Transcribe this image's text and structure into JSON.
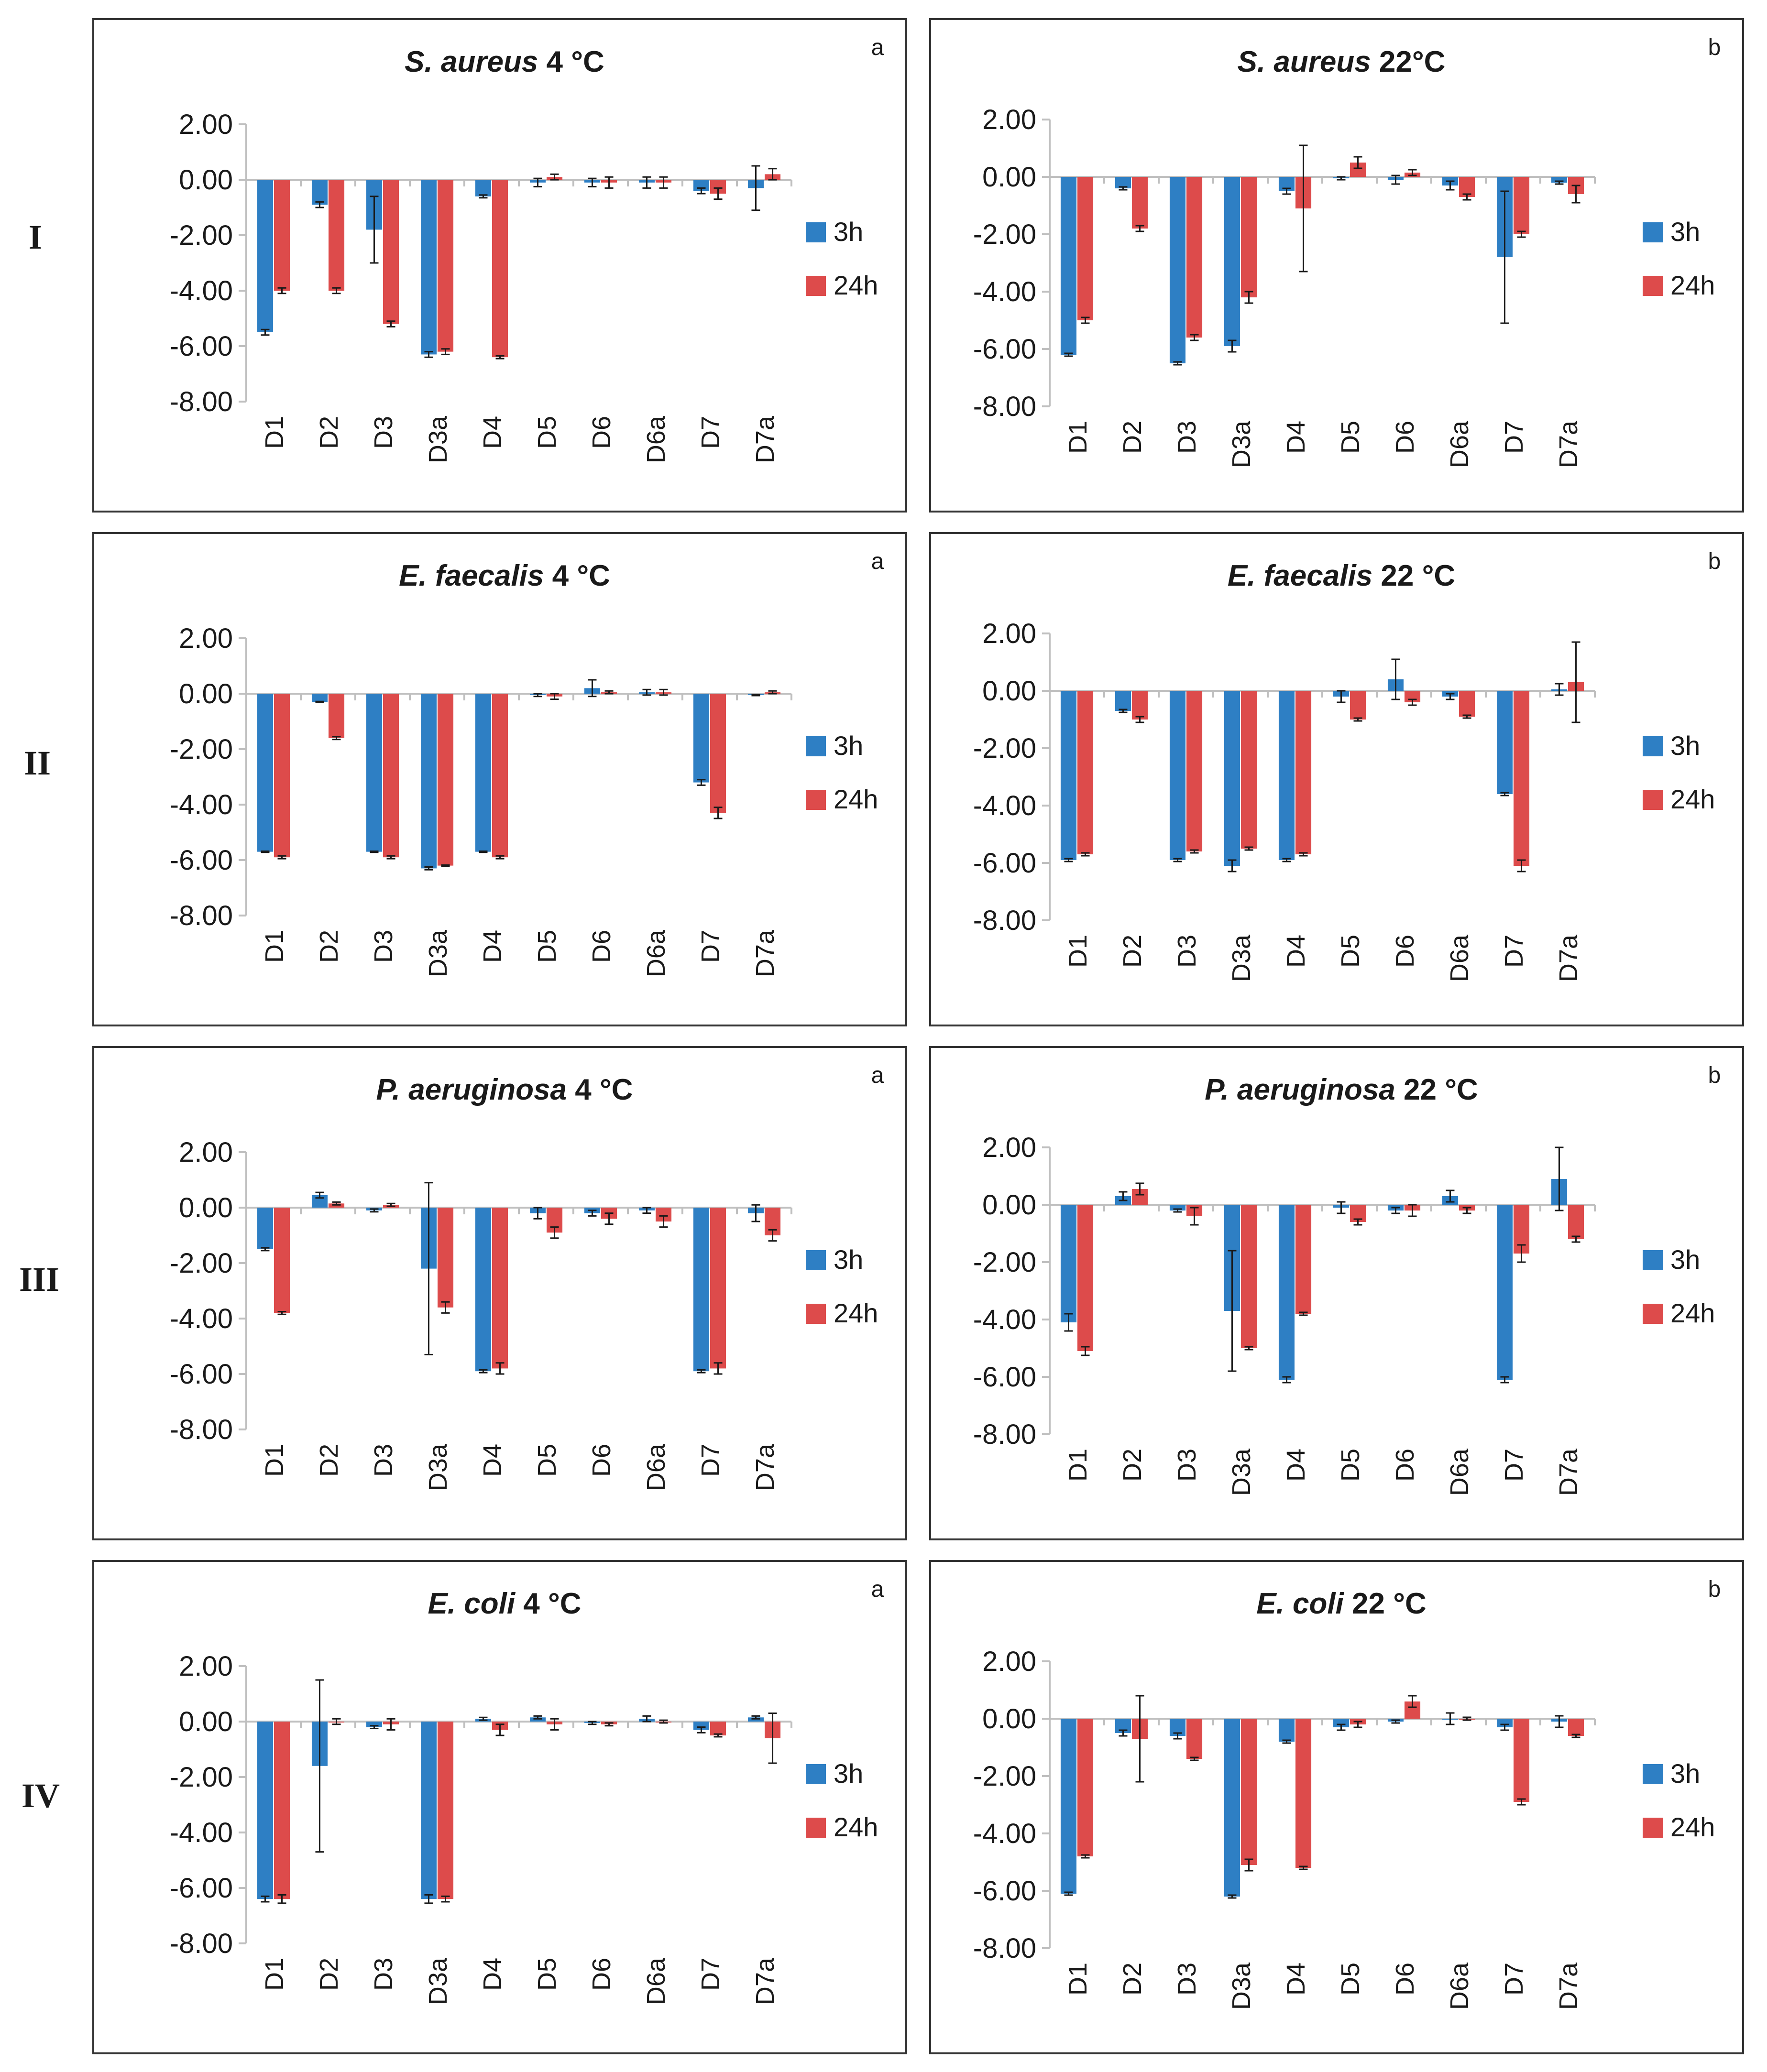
{
  "figure": {
    "row_labels": [
      "I",
      "II",
      "III",
      "IV"
    ],
    "panel_letters": [
      "a",
      "b"
    ],
    "legend": [
      {
        "label": "3h",
        "color": "#2e7fc4"
      },
      {
        "label": "24h",
        "color": "#dd4b4b"
      }
    ],
    "colors": {
      "bar_3h": "#2e7fc4",
      "bar_24h": "#dd4b4b",
      "axis": "#bfbfbf",
      "frame": "#333333",
      "text": "#1a1a1a"
    }
  },
  "chart_data": [
    {
      "type": "bar",
      "row": "I",
      "panel": "a",
      "title_species": "S. aureus",
      "title_temp": "4 °C",
      "categories": [
        "D1",
        "D2",
        "D3",
        "D3a",
        "D4",
        "D5",
        "D6",
        "D6a",
        "D7",
        "D7a"
      ],
      "ylim": [
        -8,
        2
      ],
      "yticks": [
        "2.00",
        "0.00",
        "-2.00",
        "-4.00",
        "-6.00",
        "-8.00"
      ],
      "series": [
        {
          "name": "3h",
          "values": [
            -5.5,
            -0.9,
            -1.8,
            -6.3,
            -0.6,
            -0.1,
            -0.1,
            -0.1,
            -0.4,
            -0.3
          ],
          "errors": [
            0.1,
            0.1,
            1.2,
            0.1,
            0.05,
            0.15,
            0.15,
            0.2,
            0.1,
            0.8
          ]
        },
        {
          "name": "24h",
          "values": [
            -4.0,
            -4.0,
            -5.2,
            -6.2,
            -6.4,
            0.1,
            -0.1,
            -0.1,
            -0.5,
            0.2
          ],
          "errors": [
            0.1,
            0.1,
            0.1,
            0.1,
            0.05,
            0.1,
            0.2,
            0.2,
            0.2,
            0.2
          ]
        }
      ]
    },
    {
      "type": "bar",
      "row": "I",
      "panel": "b",
      "title_species": "S. aureus",
      "title_temp": "22°C",
      "categories": [
        "D1",
        "D2",
        "D3",
        "D3a",
        "D4",
        "D5",
        "D6",
        "D6a",
        "D7",
        "D7a"
      ],
      "ylim": [
        -8,
        2
      ],
      "yticks": [
        "2.00",
        "0.00",
        "-2.00",
        "-4.00",
        "-6.00",
        "-8.00"
      ],
      "series": [
        {
          "name": "3h",
          "values": [
            -6.2,
            -0.4,
            -6.5,
            -5.9,
            -0.5,
            -0.05,
            -0.1,
            -0.3,
            -2.8,
            -0.2
          ],
          "errors": [
            0.05,
            0.05,
            0.05,
            0.2,
            0.1,
            0.05,
            0.15,
            0.15,
            2.3,
            0.05
          ]
        },
        {
          "name": "24h",
          "values": [
            -5.0,
            -1.8,
            -5.6,
            -4.2,
            -1.1,
            0.5,
            0.15,
            -0.7,
            -2.0,
            -0.6
          ],
          "errors": [
            0.1,
            0.1,
            0.1,
            0.2,
            2.2,
            0.2,
            0.1,
            0.1,
            0.1,
            0.3
          ]
        }
      ]
    },
    {
      "type": "bar",
      "row": "II",
      "panel": "a",
      "title_species": "E. faecalis",
      "title_temp": "4 °C",
      "categories": [
        "D1",
        "D2",
        "D3",
        "D3a",
        "D4",
        "D5",
        "D6",
        "D6a",
        "D7",
        "D7a"
      ],
      "ylim": [
        -8,
        2
      ],
      "yticks": [
        "2.00",
        "0.00",
        "-2.00",
        "-4.00",
        "-6.00",
        "-8.00"
      ],
      "series": [
        {
          "name": "3h",
          "values": [
            -5.7,
            -0.3,
            -5.7,
            -6.3,
            -5.7,
            -0.05,
            0.2,
            0.05,
            -3.2,
            -0.05
          ],
          "errors": [
            0.02,
            0.02,
            0.02,
            0.05,
            0.02,
            0.05,
            0.3,
            0.1,
            0.1,
            0.02
          ]
        },
        {
          "name": "24h",
          "values": [
            -5.9,
            -1.6,
            -5.9,
            -6.2,
            -5.9,
            -0.1,
            0.05,
            0.05,
            -4.3,
            0.05
          ],
          "errors": [
            0.05,
            0.05,
            0.05,
            0.02,
            0.05,
            0.1,
            0.05,
            0.1,
            0.2,
            0.05
          ]
        }
      ]
    },
    {
      "type": "bar",
      "row": "II",
      "panel": "b",
      "title_species": "E. faecalis",
      "title_temp": "22 °C",
      "categories": [
        "D1",
        "D2",
        "D3",
        "D3a",
        "D4",
        "D5",
        "D6",
        "D6a",
        "D7",
        "D7a"
      ],
      "ylim": [
        -8,
        2
      ],
      "yticks": [
        "2.00",
        "0.00",
        "-2.00",
        "-4.00",
        "-6.00",
        "-8.00"
      ],
      "series": [
        {
          "name": "3h",
          "values": [
            -5.9,
            -0.7,
            -5.9,
            -6.1,
            -5.9,
            -0.2,
            0.4,
            -0.2,
            -3.6,
            0.05
          ],
          "errors": [
            0.05,
            0.05,
            0.05,
            0.2,
            0.05,
            0.2,
            0.7,
            0.1,
            0.05,
            0.2
          ]
        },
        {
          "name": "24h",
          "values": [
            -5.7,
            -1.0,
            -5.6,
            -5.5,
            -5.7,
            -1.0,
            -0.4,
            -0.9,
            -6.1,
            0.3
          ],
          "errors": [
            0.05,
            0.1,
            0.05,
            0.05,
            0.05,
            0.05,
            0.1,
            0.05,
            0.2,
            1.4
          ]
        }
      ]
    },
    {
      "type": "bar",
      "row": "III",
      "panel": "a",
      "title_species": "P. aeruginosa",
      "title_temp": "4 °C",
      "categories": [
        "D1",
        "D2",
        "D3",
        "D3a",
        "D4",
        "D5",
        "D6",
        "D6a",
        "D7",
        "D7a"
      ],
      "ylim": [
        -8,
        2
      ],
      "yticks": [
        "2.00",
        "0.00",
        "-2.00",
        "-4.00",
        "-6.00",
        "-8.00"
      ],
      "series": [
        {
          "name": "3h",
          "values": [
            -1.5,
            0.45,
            -0.1,
            -2.2,
            -5.9,
            -0.2,
            -0.2,
            -0.1,
            -5.9,
            -0.2
          ],
          "errors": [
            0.05,
            0.1,
            0.05,
            3.1,
            0.05,
            0.2,
            0.1,
            0.1,
            0.05,
            0.3
          ]
        },
        {
          "name": "24h",
          "values": [
            -3.8,
            0.15,
            0.1,
            -3.6,
            -5.8,
            -0.9,
            -0.4,
            -0.5,
            -5.8,
            -1.0
          ],
          "errors": [
            0.05,
            0.05,
            0.05,
            0.2,
            0.2,
            0.2,
            0.2,
            0.2,
            0.2,
            0.2
          ]
        }
      ]
    },
    {
      "type": "bar",
      "row": "III",
      "panel": "b",
      "title_species": "P. aeruginosa",
      "title_temp": "22 °C",
      "categories": [
        "D1",
        "D2",
        "D3",
        "D3a",
        "D4",
        "D5",
        "D6",
        "D6a",
        "D7",
        "D7a"
      ],
      "ylim": [
        -8,
        2
      ],
      "yticks": [
        "2.00",
        "0.00",
        "-2.00",
        "-4.00",
        "-6.00",
        "-8.00"
      ],
      "series": [
        {
          "name": "3h",
          "values": [
            -4.1,
            0.3,
            -0.2,
            -3.7,
            -6.1,
            -0.1,
            -0.2,
            0.3,
            -6.1,
            0.9
          ],
          "errors": [
            0.3,
            0.15,
            0.05,
            2.1,
            0.1,
            0.2,
            0.1,
            0.2,
            0.1,
            1.1
          ]
        },
        {
          "name": "24h",
          "values": [
            -5.1,
            0.55,
            -0.4,
            -5.0,
            -3.8,
            -0.6,
            -0.2,
            -0.2,
            -1.7,
            -1.2
          ],
          "errors": [
            0.15,
            0.2,
            0.3,
            0.05,
            0.05,
            0.1,
            0.2,
            0.1,
            0.3,
            0.1
          ]
        }
      ]
    },
    {
      "type": "bar",
      "row": "IV",
      "panel": "a",
      "title_species": "E. coli",
      "title_temp": "4 °C",
      "categories": [
        "D1",
        "D2",
        "D3",
        "D3a",
        "D4",
        "D5",
        "D6",
        "D6a",
        "D7",
        "D7a"
      ],
      "ylim": [
        -8,
        2
      ],
      "yticks": [
        "2.00",
        "0.00",
        "-2.00",
        "-4.00",
        "-6.00",
        "-8.00"
      ],
      "series": [
        {
          "name": "3h",
          "values": [
            -6.4,
            -1.6,
            -0.2,
            -6.4,
            0.1,
            0.15,
            -0.05,
            0.1,
            -0.3,
            0.15
          ],
          "errors": [
            0.1,
            3.1,
            0.05,
            0.15,
            0.05,
            0.05,
            0.05,
            0.1,
            0.1,
            0.05
          ]
        },
        {
          "name": "24h",
          "values": [
            -6.4,
            0.0,
            -0.1,
            -6.4,
            -0.3,
            -0.1,
            -0.1,
            0.0,
            -0.5,
            -0.6
          ],
          "errors": [
            0.15,
            0.1,
            0.2,
            0.1,
            0.2,
            0.2,
            0.05,
            0.05,
            0.05,
            0.9
          ]
        }
      ]
    },
    {
      "type": "bar",
      "row": "IV",
      "panel": "b",
      "title_species": "E. coli",
      "title_temp": "22 °C",
      "categories": [
        "D1",
        "D2",
        "D3",
        "D3a",
        "D4",
        "D5",
        "D6",
        "D6a",
        "D7",
        "D7a"
      ],
      "ylim": [
        -8,
        2
      ],
      "yticks": [
        "2.00",
        "0.00",
        "-2.00",
        "-4.00",
        "-6.00",
        "-8.00"
      ],
      "series": [
        {
          "name": "3h",
          "values": [
            -6.1,
            -0.5,
            -0.6,
            -6.2,
            -0.8,
            -0.3,
            -0.1,
            0.0,
            -0.3,
            -0.1
          ],
          "errors": [
            0.05,
            0.1,
            0.1,
            0.05,
            0.05,
            0.1,
            0.05,
            0.2,
            0.1,
            0.2
          ]
        },
        {
          "name": "24h",
          "values": [
            -4.8,
            -0.7,
            -1.4,
            -5.1,
            -5.2,
            -0.2,
            0.6,
            0.0,
            -2.9,
            -0.6
          ],
          "errors": [
            0.05,
            1.5,
            0.05,
            0.2,
            0.05,
            0.1,
            0.2,
            0.05,
            0.1,
            0.05
          ]
        }
      ]
    }
  ]
}
